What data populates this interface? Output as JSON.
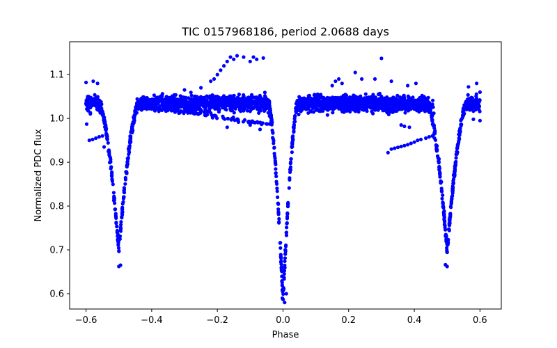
{
  "chart_data": {
    "type": "scatter",
    "title": "TIC 0157968186, period 2.0688 days",
    "xlabel": "Phase",
    "ylabel": "Normalized PDC flux",
    "xlim": [
      -0.65,
      0.665
    ],
    "ylim": [
      0.565,
      1.175
    ],
    "xticks": [
      -0.6,
      -0.4,
      -0.2,
      0.0,
      0.2,
      0.4,
      0.6
    ],
    "xtick_labels": [
      "−0.6",
      "−0.4",
      "−0.2",
      "0.0",
      "0.2",
      "0.4",
      "0.6"
    ],
    "yticks": [
      0.6,
      0.7,
      0.8,
      0.9,
      1.0,
      1.1
    ],
    "ytick_labels": [
      "0.6",
      "0.7",
      "0.8",
      "0.9",
      "1.0",
      "1.1"
    ],
    "grid": false,
    "marker_color": "#0000ff",
    "light_curve": {
      "phase_range": [
        -0.6,
        0.6
      ],
      "baseline_flux": 1.035,
      "primary_eclipse": {
        "phase": 0.0,
        "min_flux": 0.585,
        "half_width": 0.045
      },
      "secondary_eclipses": [
        {
          "phase": -0.5,
          "min_flux": 0.7,
          "half_width": 0.06
        },
        {
          "phase": 0.5,
          "min_flux": 0.7,
          "half_width": 0.06
        }
      ]
    },
    "extra_points": [
      {
        "x": -0.598,
        "y": 0.987
      },
      {
        "x": -0.59,
        "y": 0.95
      },
      {
        "x": -0.58,
        "y": 0.952
      },
      {
        "x": -0.57,
        "y": 0.955
      },
      {
        "x": -0.56,
        "y": 0.958
      },
      {
        "x": -0.55,
        "y": 0.96
      },
      {
        "x": -0.578,
        "y": 1.085
      },
      {
        "x": -0.565,
        "y": 1.08
      },
      {
        "x": -0.6,
        "y": 1.082
      },
      {
        "x": -0.545,
        "y": 0.935
      },
      {
        "x": -0.5,
        "y": 0.662
      },
      {
        "x": -0.495,
        "y": 0.665
      },
      {
        "x": -0.19,
        "y": 1.11
      },
      {
        "x": -0.18,
        "y": 1.12
      },
      {
        "x": -0.17,
        "y": 1.13
      },
      {
        "x": -0.16,
        "y": 1.14
      },
      {
        "x": -0.15,
        "y": 1.135
      },
      {
        "x": -0.14,
        "y": 1.143
      },
      {
        "x": -0.12,
        "y": 1.14
      },
      {
        "x": -0.1,
        "y": 1.13
      },
      {
        "x": -0.09,
        "y": 1.14
      },
      {
        "x": -0.08,
        "y": 1.135
      },
      {
        "x": -0.06,
        "y": 1.138
      },
      {
        "x": -0.2,
        "y": 1.1
      },
      {
        "x": -0.21,
        "y": 1.09
      },
      {
        "x": -0.22,
        "y": 1.085
      },
      {
        "x": -0.25,
        "y": 1.07
      },
      {
        "x": -0.3,
        "y": 1.065
      },
      {
        "x": -0.17,
        "y": 0.98
      },
      {
        "x": -0.07,
        "y": 0.975
      },
      {
        "x": -0.1,
        "y": 0.985
      },
      {
        "x": 0.3,
        "y": 1.137
      },
      {
        "x": 0.22,
        "y": 1.105
      },
      {
        "x": 0.17,
        "y": 1.09
      },
      {
        "x": 0.16,
        "y": 1.085
      },
      {
        "x": 0.24,
        "y": 1.09
      },
      {
        "x": 0.28,
        "y": 1.09
      },
      {
        "x": 0.15,
        "y": 1.075
      },
      {
        "x": 0.18,
        "y": 1.08
      },
      {
        "x": 0.33,
        "y": 1.085
      },
      {
        "x": 0.38,
        "y": 1.075
      },
      {
        "x": 0.405,
        "y": 1.08
      },
      {
        "x": 0.32,
        "y": 0.922
      },
      {
        "x": 0.33,
        "y": 0.93
      },
      {
        "x": 0.34,
        "y": 0.932
      },
      {
        "x": 0.35,
        "y": 0.934
      },
      {
        "x": 0.36,
        "y": 0.936
      },
      {
        "x": 0.37,
        "y": 0.938
      },
      {
        "x": 0.38,
        "y": 0.94
      },
      {
        "x": 0.39,
        "y": 0.943
      },
      {
        "x": 0.4,
        "y": 0.946
      },
      {
        "x": 0.41,
        "y": 0.95
      },
      {
        "x": 0.42,
        "y": 0.952
      },
      {
        "x": 0.435,
        "y": 0.955
      },
      {
        "x": 0.445,
        "y": 0.958
      },
      {
        "x": 0.455,
        "y": 0.96
      },
      {
        "x": 0.36,
        "y": 0.985
      },
      {
        "x": 0.37,
        "y": 0.982
      },
      {
        "x": 0.385,
        "y": 0.98
      },
      {
        "x": 0.5,
        "y": 0.662
      },
      {
        "x": 0.495,
        "y": 0.666
      },
      {
        "x": 0.565,
        "y": 1.072
      },
      {
        "x": 0.59,
        "y": 1.08
      },
      {
        "x": 0.6,
        "y": 1.06
      },
      {
        "x": 0.6,
        "y": 0.995
      },
      {
        "x": 0.58,
        "y": 0.998
      },
      {
        "x": 0.005,
        "y": 0.58
      },
      {
        "x": -0.002,
        "y": 0.59
      },
      {
        "x": 0.01,
        "y": 0.6
      }
    ]
  }
}
